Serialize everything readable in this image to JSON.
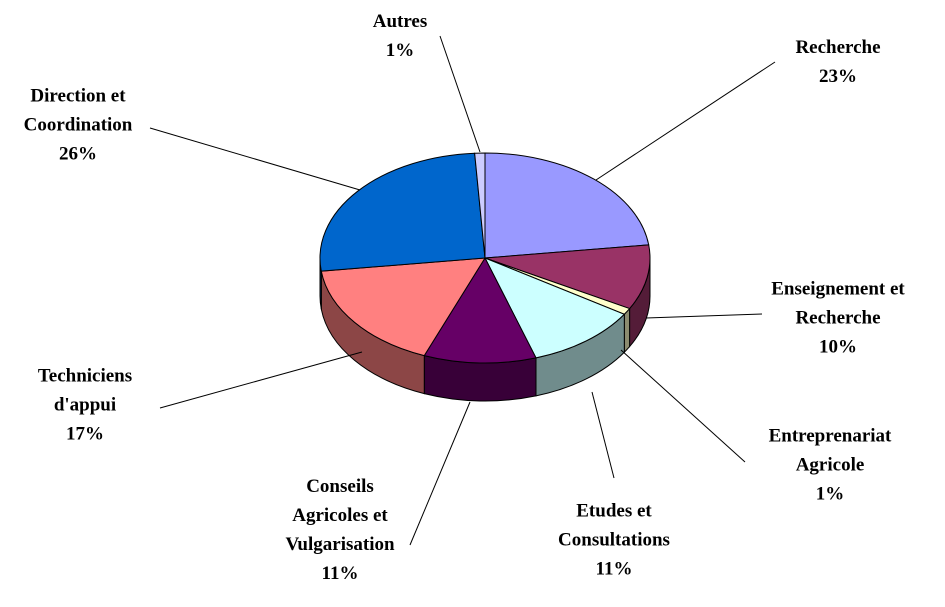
{
  "chart_data": {
    "type": "pie3d",
    "categories": [
      "Recherche",
      "Enseignement et Recherche",
      "Entreprenariat Agricole",
      "Etudes et Consultations",
      "Conseils Agricoles et Vulgarisation",
      "Techniciens d'appui",
      "Direction et Coordination",
      "Autres"
    ],
    "values": [
      23,
      10,
      1,
      11,
      11,
      17,
      26,
      1
    ],
    "value_labels": [
      "23%",
      "10%",
      "1%",
      "11%",
      "11%",
      "17%",
      "26%",
      "1%"
    ],
    "colors": [
      "#9999ff",
      "#993366",
      "#ffffcc",
      "#ccffff",
      "#660066",
      "#ff8080",
      "#0066cc",
      "#ccccff"
    ]
  }
}
